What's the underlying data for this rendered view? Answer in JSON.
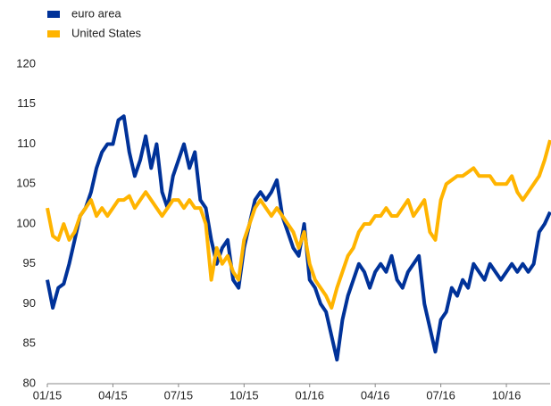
{
  "chart_data": {
    "type": "line",
    "categories": [
      "01/15",
      null,
      null,
      null,
      null,
      null,
      null,
      null,
      null,
      null,
      null,
      null,
      "04/15",
      null,
      null,
      null,
      null,
      null,
      null,
      null,
      null,
      null,
      null,
      null,
      "07/15",
      null,
      null,
      null,
      null,
      null,
      null,
      null,
      null,
      null,
      null,
      null,
      "10/15",
      null,
      null,
      null,
      null,
      null,
      null,
      null,
      null,
      null,
      null,
      null,
      "01/16",
      null,
      null,
      null,
      null,
      null,
      null,
      null,
      null,
      null,
      null,
      null,
      "04/16",
      null,
      null,
      null,
      null,
      null,
      null,
      null,
      null,
      null,
      null,
      null,
      "07/16",
      null,
      null,
      null,
      null,
      null,
      null,
      null,
      null,
      null,
      null,
      null,
      "10/16",
      null,
      null,
      null,
      null,
      null,
      null,
      null,
      null
    ],
    "series": [
      {
        "name": "euro area",
        "color": "#003299",
        "values": [
          93,
          89.5,
          92,
          92.5,
          95,
          98,
          101,
          102,
          104,
          107,
          109,
          110,
          110,
          113,
          113.5,
          109,
          106,
          108,
          111,
          107,
          110,
          104,
          102,
          106,
          108,
          110,
          107,
          109,
          103,
          102,
          98,
          95,
          97,
          98,
          93,
          92,
          97,
          100,
          103,
          104,
          103,
          104,
          105.5,
          101,
          99,
          97,
          96,
          100,
          93,
          92,
          90,
          89,
          86,
          83,
          88,
          91,
          93,
          95,
          94,
          92,
          94,
          95,
          94,
          96,
          93,
          92,
          94,
          95,
          96,
          90,
          87,
          84,
          88,
          89,
          92,
          91,
          93,
          92,
          95,
          94,
          93,
          95,
          94,
          93,
          94,
          95,
          94,
          95,
          94,
          95,
          99,
          100,
          101.5
        ]
      },
      {
        "name": "United States",
        "color": "#ffb400",
        "values": [
          102,
          98.5,
          98,
          100,
          98,
          99,
          101,
          102,
          103,
          101,
          102,
          101,
          102,
          103,
          103,
          103.5,
          102,
          103,
          104,
          103,
          102,
          101,
          102,
          103,
          103,
          102,
          103,
          102,
          102,
          100,
          93,
          97,
          95,
          96,
          94,
          93,
          98,
          100,
          102,
          103,
          102,
          101,
          102,
          101,
          100,
          99,
          97,
          99,
          95,
          93,
          92,
          91,
          89.5,
          92,
          94,
          96,
          97,
          99,
          100,
          100,
          101,
          101,
          102,
          101,
          101,
          102,
          103,
          101,
          102,
          103,
          99,
          98,
          103,
          105,
          105.5,
          106,
          106,
          106.5,
          107,
          106,
          106,
          106,
          105,
          105,
          105,
          106,
          104,
          103,
          104,
          105,
          106,
          108,
          110.5
        ]
      }
    ],
    "ylim": [
      80,
      120
    ],
    "yticks": [
      80,
      85,
      90,
      95,
      100,
      105,
      110,
      115,
      120
    ]
  }
}
